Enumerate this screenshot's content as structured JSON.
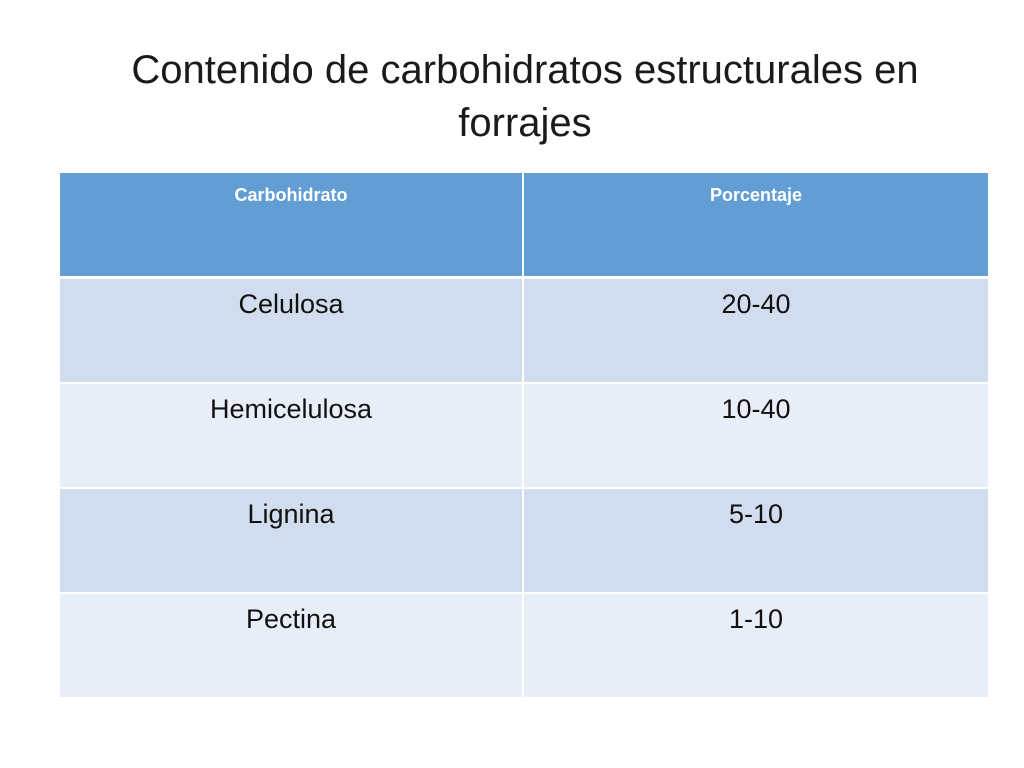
{
  "title": "Contenido de carbohidratos estructurales en forrajes",
  "colors": {
    "header_background": "#629ed4",
    "row_odd": "#d1ddee",
    "row_even": "#e8eef7",
    "header_text": "#ffffff"
  },
  "table": {
    "headers": [
      "Carbohidrato",
      "Porcentaje"
    ],
    "rows": [
      {
        "carbohidrato": "Celulosa",
        "porcentaje": "20-40"
      },
      {
        "carbohidrato": "Hemicelulosa",
        "porcentaje": "10-40"
      },
      {
        "carbohidrato": "Lignina",
        "porcentaje": "5-10"
      },
      {
        "carbohidrato": "Pectina",
        "porcentaje": "1-10"
      }
    ]
  }
}
